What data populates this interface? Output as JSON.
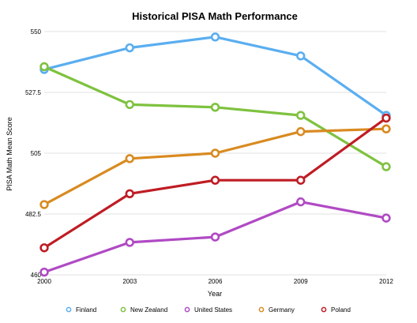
{
  "chart_data": {
    "type": "line",
    "title": "Historical PISA Math Performance",
    "xlabel": "Year",
    "ylabel": "PISA Math Mean Score",
    "x": [
      "2000",
      "2003",
      "2006",
      "2009",
      "2012"
    ],
    "ylim": [
      460,
      550
    ],
    "yticks": [
      "460",
      "482.5",
      "505",
      "527.5",
      "550"
    ],
    "grid": true,
    "legend_position": "bottom",
    "series": [
      {
        "name": "Finland",
        "color": "#5aaef0",
        "values": [
          536,
          544,
          548,
          541,
          519
        ]
      },
      {
        "name": "New Zealand",
        "color": "#7ec23f",
        "values": [
          537,
          523,
          522,
          519,
          500
        ]
      },
      {
        "name": "United States",
        "color": "#b04ac4",
        "values": [
          461,
          472,
          474,
          487,
          481
        ]
      },
      {
        "name": "Germany",
        "color": "#d98a20",
        "values": [
          486,
          503,
          505,
          513,
          514
        ]
      },
      {
        "name": "Poland",
        "color": "#bf1c24",
        "values": [
          470,
          490,
          495,
          495,
          518
        ]
      }
    ]
  }
}
